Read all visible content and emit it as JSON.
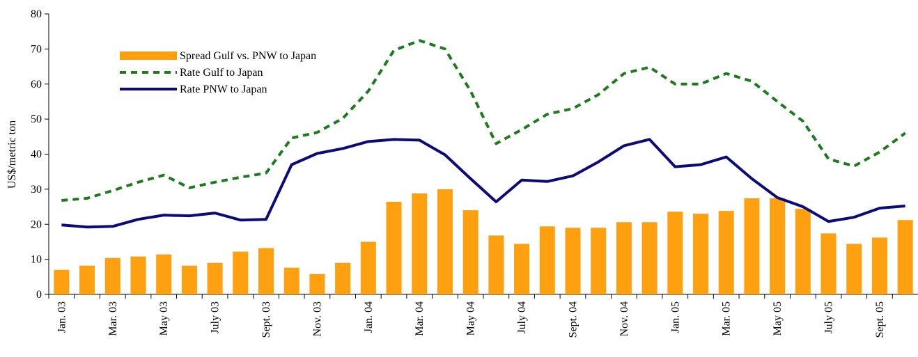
{
  "chart_data": {
    "type": "bar_line",
    "y_label": "US$/metric ton",
    "categories": [
      "Jan. 03",
      null,
      "Mar. 03",
      null,
      "May  03",
      null,
      "July 03",
      null,
      "Sept. 03",
      null,
      "Nov. 03",
      null,
      "Jan. 04",
      null,
      "Mar. 04",
      null,
      "May 04",
      null,
      "July 04",
      null,
      "Sept. 04",
      null,
      "Nov. 04",
      null,
      "Jan. 05",
      null,
      "Mar. 05",
      null,
      "May 05",
      null,
      "July 05",
      null,
      "Sept. 05",
      null
    ],
    "series": [
      {
        "name": "Spread Gulf vs. PNW to Japan",
        "kind": "bar",
        "color": "#ffa010",
        "values": [
          7,
          8.2,
          10.4,
          10.8,
          11.4,
          8.2,
          9,
          12.2,
          13.2,
          7.6,
          5.8,
          9,
          15,
          26.4,
          28.8,
          30,
          24,
          16.8,
          14.4,
          19.4,
          19,
          19,
          20.6,
          20.6,
          23.6,
          23,
          23.8,
          27.4,
          27.4,
          24.4,
          17.4,
          14.4,
          16.2,
          21.2
        ]
      },
      {
        "name": "Rate Gulf to Japan",
        "kind": "dashed-line",
        "color": "#1e7a1e",
        "values": [
          26.8,
          27.4,
          29.6,
          32,
          34,
          30.4,
          32,
          33.4,
          34.6,
          44.6,
          46.2,
          50.2,
          58,
          69.6,
          72.4,
          70,
          58,
          43,
          47,
          51.4,
          53,
          57,
          63,
          64.8,
          60,
          60,
          63,
          60.8,
          55,
          49.4,
          38.6,
          36.6,
          40.6,
          46
        ]
      },
      {
        "name": "Rate PNW to Japan",
        "kind": "line",
        "color": "#0a0a78",
        "values": [
          19.8,
          19.2,
          19.4,
          21.4,
          22.6,
          22.4,
          23.2,
          21.2,
          21.4,
          37,
          40.2,
          41.6,
          43.6,
          44.2,
          44,
          39.8,
          33,
          26.4,
          32.6,
          32.2,
          33.8,
          37.8,
          42.4,
          44.2,
          36.4,
          37,
          39.2,
          33,
          27.6,
          25,
          20.8,
          22,
          24.6,
          25.2
        ]
      }
    ],
    "ylim": [
      0,
      80
    ],
    "yticks": [
      0,
      10,
      20,
      30,
      40,
      50,
      60,
      70,
      80
    ],
    "grid": false,
    "legend": "top-left"
  }
}
